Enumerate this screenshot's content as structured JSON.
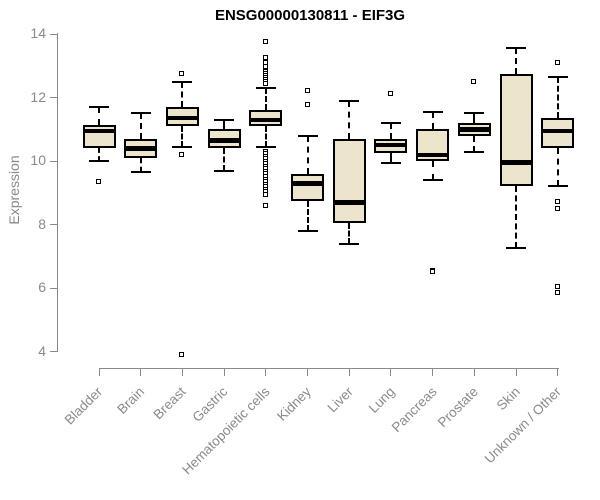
{
  "title": "ENSG00000130811 - EIF3G",
  "colors": {
    "box_fill": "#ece5cb",
    "box_border": "#000000",
    "axis": "#8a8a8a",
    "tick_text": "#8a8a8a",
    "title_text": "#000000"
  },
  "chart_data": {
    "type": "boxplot",
    "title": "ENSG00000130811 - EIF3G",
    "xlabel": "",
    "ylabel": "Expression",
    "ylim": [
      4,
      14
    ],
    "y_ticks": [
      4,
      6,
      8,
      10,
      12,
      14
    ],
    "grid": "off",
    "legend": "none",
    "categories": [
      "Bladder",
      "Brain",
      "Breast",
      "Gastric",
      "Hematopoietic cells",
      "Kidney",
      "Liver",
      "Lung",
      "Pancreas",
      "Prostate",
      "Skin",
      "Unknown / Other"
    ],
    "series": [
      {
        "name": "Bladder",
        "whisker_low": 10.0,
        "q1": 10.4,
        "median": 10.95,
        "q3": 11.15,
        "whisker_high": 11.7,
        "outliers": [
          9.35
        ]
      },
      {
        "name": "Brain",
        "whisker_low": 9.65,
        "q1": 10.1,
        "median": 10.4,
        "q3": 10.7,
        "whisker_high": 11.5,
        "outliers": []
      },
      {
        "name": "Breast",
        "whisker_low": 10.45,
        "q1": 11.1,
        "median": 11.35,
        "q3": 11.7,
        "whisker_high": 12.5,
        "outliers": [
          12.75,
          10.2,
          3.9
        ]
      },
      {
        "name": "Gastric",
        "whisker_low": 9.7,
        "q1": 10.4,
        "median": 10.65,
        "q3": 11.0,
        "whisker_high": 11.3,
        "outliers": []
      },
      {
        "name": "Hematopoietic cells",
        "whisker_low": 10.45,
        "q1": 11.1,
        "median": 11.3,
        "q3": 11.6,
        "whisker_high": 12.3,
        "outliers": [
          13.75,
          13.25,
          13.1,
          12.95,
          12.85,
          12.79,
          12.73,
          12.67,
          12.61,
          12.55,
          12.49,
          12.43,
          10.3,
          10.22,
          10.14,
          10.06,
          9.98,
          9.9,
          9.82,
          9.74,
          9.66,
          9.58,
          9.5,
          9.42,
          9.34,
          9.26,
          9.18,
          9.1,
          9.02,
          8.94,
          8.6
        ]
      },
      {
        "name": "Kidney",
        "whisker_low": 7.8,
        "q1": 8.75,
        "median": 9.3,
        "q3": 9.6,
        "whisker_high": 10.8,
        "outliers": [
          12.2,
          11.75
        ]
      },
      {
        "name": "Liver",
        "whisker_low": 7.4,
        "q1": 8.05,
        "median": 8.7,
        "q3": 10.7,
        "whisker_high": 11.9,
        "outliers": []
      },
      {
        "name": "Lung",
        "whisker_low": 9.95,
        "q1": 10.25,
        "median": 10.5,
        "q3": 10.7,
        "whisker_high": 11.2,
        "outliers": [
          12.1
        ]
      },
      {
        "name": "Pancreas",
        "whisker_low": 9.4,
        "q1": 10.0,
        "median": 10.2,
        "q3": 11.0,
        "whisker_high": 11.55,
        "outliers": [
          6.55,
          6.5
        ]
      },
      {
        "name": "Prostate",
        "whisker_low": 10.3,
        "q1": 10.8,
        "median": 11.0,
        "q3": 11.2,
        "whisker_high": 11.5,
        "outliers": [
          12.5
        ]
      },
      {
        "name": "Skin",
        "whisker_low": 7.25,
        "q1": 9.2,
        "median": 9.95,
        "q3": 12.75,
        "whisker_high": 13.55,
        "outliers": []
      },
      {
        "name": "Unknown / Other",
        "whisker_low": 9.2,
        "q1": 10.4,
        "median": 10.95,
        "q3": 11.35,
        "whisker_high": 12.65,
        "outliers": [
          13.1,
          8.7,
          8.5,
          6.05,
          5.85
        ]
      }
    ]
  }
}
